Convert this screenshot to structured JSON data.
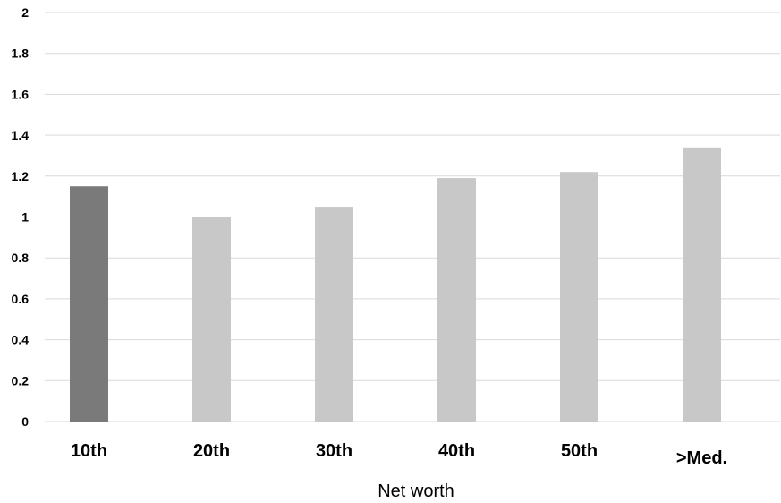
{
  "chart_data": {
    "type": "bar",
    "categories": [
      "10th",
      "20th",
      "30th",
      "40th",
      "50th",
      ">Med."
    ],
    "values": [
      1.15,
      1.0,
      1.05,
      1.19,
      1.22,
      1.34
    ],
    "xlabel": "Net worth",
    "ylabel": "",
    "ylim": [
      0,
      2
    ],
    "yticks": [
      "0",
      "0.2",
      "0.4",
      "0.6",
      "0.8",
      "1",
      "1.2",
      "1.4",
      "1.6",
      "1.8",
      "2"
    ],
    "ytick_values": [
      0,
      0.2,
      0.4,
      0.6,
      0.8,
      1,
      1.2,
      1.4,
      1.6,
      1.8,
      2
    ],
    "grid": true,
    "colors": {
      "highlight": "#7a7a7a",
      "default": "#c8c8c8"
    },
    "highlight_index": 0
  }
}
